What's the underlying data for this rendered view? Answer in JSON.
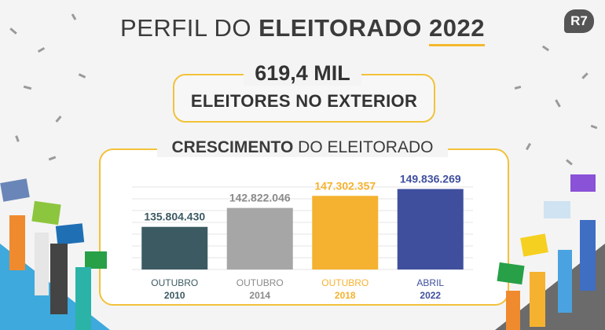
{
  "header": {
    "title_prefix": "PERFIL DO",
    "title_bold": "ELEITORADO",
    "title_year": "2022",
    "logo": "R7"
  },
  "stat": {
    "value": "619,4 MIL",
    "label": "ELEITORES NO EXTERIOR"
  },
  "chart_title": {
    "bold": "CRESCIMENTO",
    "rest": " DO ELEITORADO"
  },
  "colors": {
    "accent": "#f2c23a",
    "bar_2010": "#3c5a62",
    "bar_2014": "#a6a6a6",
    "bar_2018": "#f5b230",
    "bar_2022": "#3f4f9e"
  },
  "chart_data": {
    "type": "bar",
    "title": "CRESCIMENTO DO ELEITORADO",
    "categories": [
      {
        "line1": "OUTUBRO",
        "line2": "2010"
      },
      {
        "line1": "OUTUBRO",
        "line2": "2014"
      },
      {
        "line1": "OUTUBRO",
        "line2": "2018"
      },
      {
        "line1": "ABRIL",
        "line2": "2022"
      }
    ],
    "values": [
      135804430,
      142822046,
      147302357,
      149836269
    ],
    "value_labels": [
      "135.804.430",
      "142.822.046",
      "147.302.357",
      "149.836.269"
    ],
    "bar_colors": [
      "#3c5a62",
      "#a6a6a6",
      "#f5b230",
      "#3f4f9e"
    ],
    "label_colors": [
      "#3c5a62",
      "#8a8a8a",
      "#f5b230",
      "#3f4f9e"
    ],
    "grid": true
  }
}
